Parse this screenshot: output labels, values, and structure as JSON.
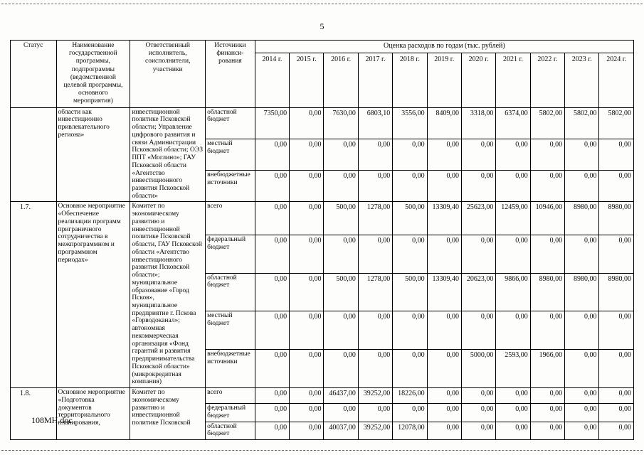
{
  "page": {
    "number": "5",
    "footer": "108МН.doc"
  },
  "table": {
    "headers": {
      "status": "Статус",
      "program": "Наименование государственной программы, подпрограммы (ведомственной целевой программы, основного мероприятия)",
      "executor": "Ответственный исполнитель, соисполнители, участники",
      "sources": "Источники финанси-рования",
      "estimate": "Оценка расходов по годам (тыс. рублей)",
      "years": [
        "2014 г.",
        "2015 г.",
        "2016 г.",
        "2017 г.",
        "2018 г.",
        "2019 г.",
        "2020 г.",
        "2021 г.",
        "2022 г.",
        "2023 г.",
        "2024 г."
      ]
    },
    "blocks": [
      {
        "status": "",
        "program": "области как инвестиционно привлекательного региона»",
        "executor": "инвестиционной политике Псковской области; Управление цифрового развития и связи Администрации Псковской области; ОЭЗ ППТ «Моглино»; ГАУ Псковской области «Агентство инвестиционного развития Псковской области»",
        "rows": [
          {
            "source": "областной бюджет",
            "values": [
              "7350,00",
              "0,00",
              "7630,00",
              "6803,10",
              "3556,00",
              "8409,00",
              "3318,00",
              "6374,00",
              "5802,00",
              "5802,00",
              "5802,00"
            ]
          },
          {
            "source": "местный бюджет",
            "values": [
              "0,00",
              "0,00",
              "0,00",
              "0,00",
              "0,00",
              "0,00",
              "0,00",
              "0,00",
              "0,00",
              "0,00",
              "0,00"
            ]
          },
          {
            "source": "внебюджетные источники",
            "values": [
              "0,00",
              "0,00",
              "0,00",
              "0,00",
              "0,00",
              "0,00",
              "0,00",
              "0,00",
              "0,00",
              "0,00",
              "0,00"
            ]
          }
        ]
      },
      {
        "status": "1.7.",
        "program": "Основное мероприятие «Обеспечение реализации программ приграничного сотрудничества в межпрограммном и программном периодах»",
        "executor": "Комитет по экономическому развитию и инвестиционной политике Псковской области, ГАУ Псковской области «Агентство инвестиционного развития Псковской области»;\nмуниципальное образование «Город Псков»,\nмуниципальное предприятие г. Пскова «Горводоканал»;\nавтономная некоммерческая организация «Фонд гарантий и развития предпринимательства Псковской области» (микрокредитная компания)",
        "rows": [
          {
            "source": "всего",
            "values": [
              "0,00",
              "0,00",
              "500,00",
              "1278,00",
              "500,00",
              "13309,40",
              "25623,00",
              "12459,00",
              "10946,00",
              "8980,00",
              "8980,00"
            ]
          },
          {
            "source": "федеральный бюджет",
            "values": [
              "0,00",
              "0,00",
              "0,00",
              "0,00",
              "0,00",
              "0,00",
              "0,00",
              "0,00",
              "0,00",
              "0,00",
              "0,00"
            ]
          },
          {
            "source": "областной бюджет",
            "values": [
              "0,00",
              "0,00",
              "500,00",
              "1278,00",
              "500,00",
              "13309,40",
              "20623,00",
              "9866,00",
              "8980,00",
              "8980,00",
              "8980,00"
            ]
          },
          {
            "source": "местный бюджет",
            "values": [
              "0,00",
              "0,00",
              "0,00",
              "0,00",
              "0,00",
              "0,00",
              "0,00",
              "0,00",
              "0,00",
              "0,00",
              "0,00"
            ]
          },
          {
            "source": "внебюджетные источники",
            "values": [
              "0,00",
              "0,00",
              "0,00",
              "0,00",
              "0,00",
              "0,00",
              "5000,00",
              "2593,00",
              "1966,00",
              "0,00",
              "0,00"
            ]
          }
        ]
      },
      {
        "status": "1.8.",
        "program": "Основное мероприятие «Подготовка документов территориального планирования,",
        "executor": "Комитет по экономическому развитию и инвестиционной политике Псковской",
        "rows": [
          {
            "source": "всего",
            "values": [
              "0,00",
              "0,00",
              "46437,00",
              "39252,00",
              "18226,00",
              "0,00",
              "0,00",
              "0,00",
              "0,00",
              "0,00",
              "0,00"
            ]
          },
          {
            "source": "федеральный бюджет",
            "values": [
              "0,00",
              "0,00",
              "0,00",
              "0,00",
              "0,00",
              "0,00",
              "0,00",
              "0,00",
              "0,00",
              "0,00",
              "0,00"
            ]
          },
          {
            "source": "областной бюджет",
            "values": [
              "0,00",
              "0,00",
              "40037,00",
              "39252,00",
              "12078,00",
              "0,00",
              "0,00",
              "0,00",
              "0,00",
              "0,00",
              "0,00"
            ]
          }
        ]
      }
    ]
  }
}
